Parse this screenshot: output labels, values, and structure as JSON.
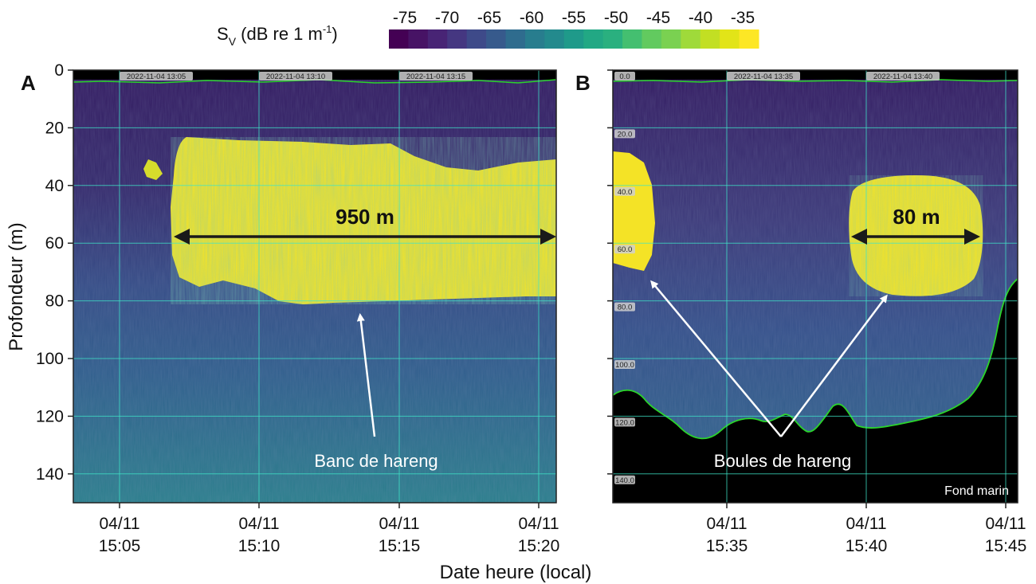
{
  "colorbar": {
    "label_main": "S",
    "label_sub": "V",
    "label_rest": " (dB re 1 m",
    "label_sup": "-1",
    "label_end": ")",
    "ticks": [
      "-75",
      "-70",
      "-65",
      "-60",
      "-55",
      "-50",
      "-45",
      "-40",
      "-35"
    ],
    "colors": [
      "#440154",
      "#471365",
      "#482475",
      "#453781",
      "#3e4a89",
      "#375a8c",
      "#2f6c8e",
      "#287d8e",
      "#238a8d",
      "#1f9a8a",
      "#22a884",
      "#2ab07f",
      "#44bf70",
      "#62ca5f",
      "#7ad151",
      "#9fda3a",
      "#c2df23",
      "#e2e418",
      "#fde725"
    ]
  },
  "axes": {
    "ylabel": "Profondeur (m)",
    "xlabel": "Date heure (local)",
    "y_ticks": [
      "0",
      "20",
      "40",
      "60",
      "80",
      "100",
      "120",
      "140"
    ]
  },
  "chart_data": [
    {
      "type": "heatmap",
      "panel": "A",
      "title": "",
      "xlabel": "Date heure (local)",
      "ylabel": "Profondeur (m)",
      "ylim": [
        150,
        0
      ],
      "x_ticks": [
        {
          "date": "04/11",
          "time": "15:05"
        },
        {
          "date": "04/11",
          "time": "15:10"
        },
        {
          "date": "04/11",
          "time": "15:15"
        },
        {
          "date": "04/11",
          "time": "15:20"
        }
      ],
      "timestamps": [
        "2022-11-04 13:05",
        "2022-11-04 13:10",
        "2022-11-04 13:15"
      ],
      "annotations": [
        {
          "text": "950 m",
          "kind": "distance"
        },
        {
          "text": "Banc de hareng",
          "kind": "label"
        }
      ]
    },
    {
      "type": "heatmap",
      "panel": "B",
      "title": "",
      "xlabel": "Date heure (local)",
      "ylabel": "Profondeur (m)",
      "ylim": [
        150,
        0
      ],
      "x_ticks": [
        {
          "date": "04/11",
          "time": "15:35"
        },
        {
          "date": "04/11",
          "time": "15:40"
        },
        {
          "date": "04/11",
          "time": "15:45"
        }
      ],
      "timestamps": [
        "2022-11-04 13:35",
        "2022-11-04 13:40"
      ],
      "depth_labels": [
        "0.0",
        "20.0",
        "40.0",
        "60.0",
        "80.0",
        "100.0",
        "120.0",
        "140.0"
      ],
      "annotations": [
        {
          "text": "80 m",
          "kind": "distance"
        },
        {
          "text": "Boules de hareng",
          "kind": "label"
        },
        {
          "text": "Fond marin",
          "kind": "label"
        }
      ]
    }
  ],
  "colors": {
    "background": "#2d1f5e",
    "school": "#fde725",
    "gridline": "#3ee6c8",
    "seabed": "#000000",
    "bottom_line": "#2bd42b"
  }
}
